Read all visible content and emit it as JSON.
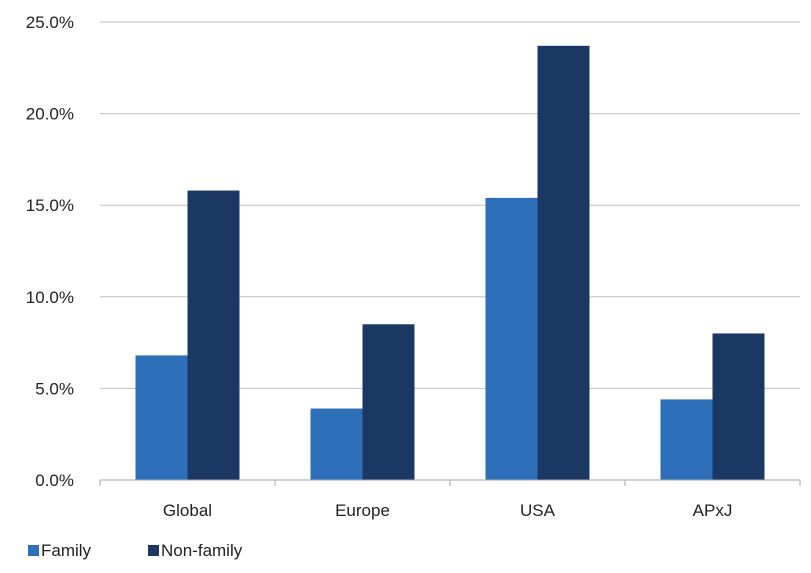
{
  "chart_data": {
    "type": "bar",
    "categories": [
      "Global",
      "Europe",
      "USA",
      "APxJ"
    ],
    "series": [
      {
        "name": "Family",
        "values": [
          6.8,
          3.9,
          15.4,
          4.4
        ],
        "color": "#2e6fba"
      },
      {
        "name": "Non-family",
        "values": [
          15.8,
          8.5,
          23.7,
          8.0
        ],
        "color": "#1b3764"
      }
    ],
    "ylim": [
      0,
      25
    ],
    "yticks": [
      0,
      5,
      10,
      15,
      20,
      25
    ],
    "ytick_labels": [
      "0.0%",
      "5.0%",
      "10.0%",
      "15.0%",
      "20.0%",
      "25.0%"
    ],
    "grid": true,
    "gridline_color": "#bfbfbf",
    "legend_placement": "bottom-left"
  }
}
